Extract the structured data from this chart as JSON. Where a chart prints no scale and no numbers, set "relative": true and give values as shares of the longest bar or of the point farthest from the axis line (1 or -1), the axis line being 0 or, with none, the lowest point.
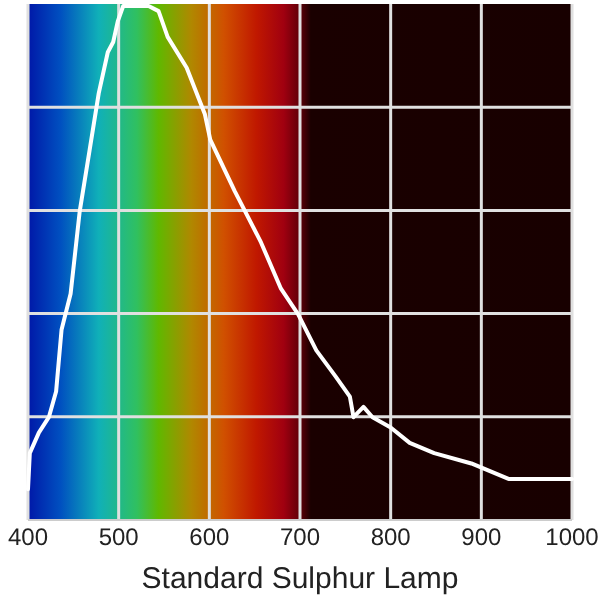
{
  "chart_data": {
    "type": "line",
    "xlabel": "Standard Sulphur Lamp",
    "relative": true,
    "grid": true,
    "marker": "none",
    "line_style": "solid",
    "xlim": [
      400,
      1000
    ],
    "xticks": [
      400,
      500,
      600,
      700,
      800,
      900,
      1000
    ],
    "x": [
      400,
      402,
      412,
      423,
      431,
      437,
      447,
      457,
      468,
      478,
      488,
      494,
      499,
      505,
      515,
      533,
      544,
      554,
      575,
      595,
      601,
      628,
      657,
      679,
      698,
      718,
      739,
      755,
      759,
      770,
      780,
      800,
      821,
      848,
      889,
      930,
      956,
      991,
      1000
    ],
    "series": [
      {
        "color": "#ffffff",
        "values": [
          0.06,
          0.13,
          0.17,
          0.2,
          0.25,
          0.37,
          0.44,
          0.6,
          0.72,
          0.83,
          0.91,
          0.93,
          0.97,
          1,
          1,
          1,
          0.99,
          0.94,
          0.88,
          0.79,
          0.74,
          0.64,
          0.54,
          0.45,
          0.4,
          0.33,
          0.28,
          0.24,
          0.2,
          0.22,
          0.2,
          0.18,
          0.15,
          0.13,
          0.11,
          0.08,
          0.08,
          0.08,
          0.08
        ]
      }
    ]
  }
}
